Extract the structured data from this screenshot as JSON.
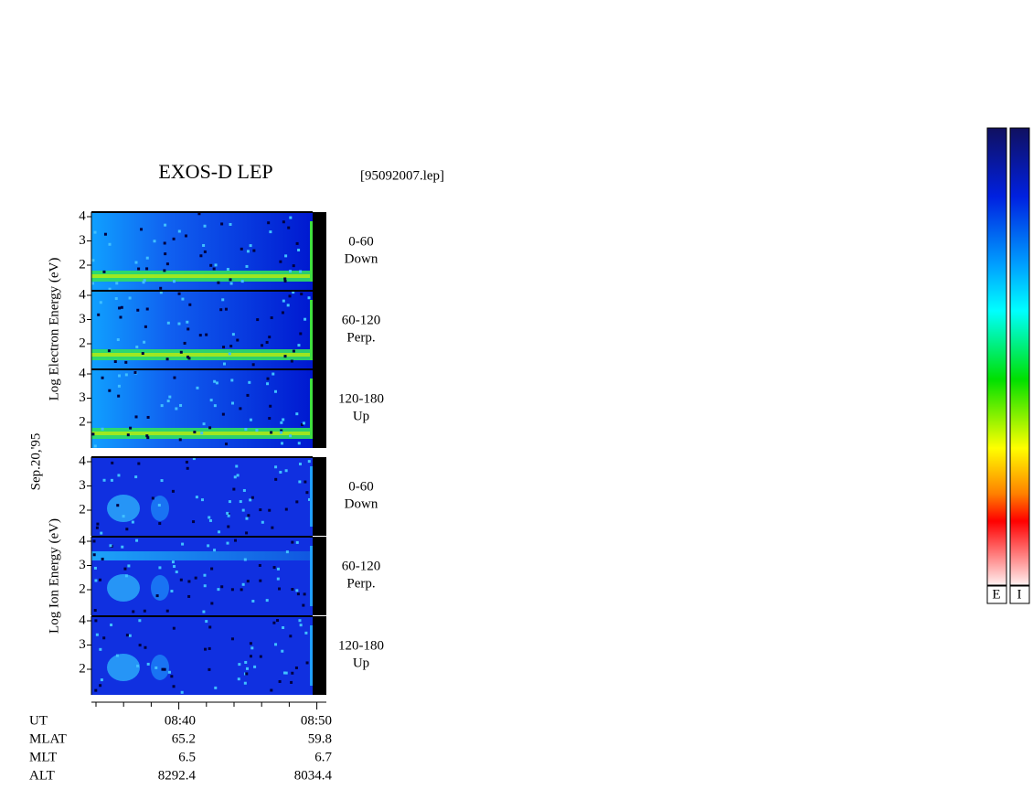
{
  "header": {
    "title": "EXOS-D LEP",
    "file": "[95092007.lep]"
  },
  "date": "Sep.20,'95",
  "electron": {
    "axis_label": "Log Electron Energy (eV)",
    "panels": [
      {
        "range": "0-60",
        "direction": "Down",
        "yticks": [
          2,
          3,
          4
        ]
      },
      {
        "range": "60-120",
        "direction": "Perp.",
        "yticks": [
          2,
          3,
          4
        ]
      },
      {
        "range": "120-180",
        "direction": "Up",
        "yticks": [
          2,
          3,
          4
        ]
      }
    ]
  },
  "ion": {
    "axis_label": "Log Ion Energy (eV)",
    "panels": [
      {
        "range": "0-60",
        "direction": "Down",
        "yticks": [
          2,
          3,
          4
        ]
      },
      {
        "range": "60-120",
        "direction": "Perp.",
        "yticks": [
          2,
          3,
          4
        ]
      },
      {
        "range": "120-180",
        "direction": "Up",
        "yticks": [
          2,
          3,
          4
        ]
      }
    ]
  },
  "footer": {
    "rows": [
      [
        "UT",
        "08:40",
        "08:50"
      ],
      [
        "MLAT",
        "65.2",
        "59.8"
      ],
      [
        "MLT",
        "6.5",
        "6.7"
      ],
      [
        "ALT",
        "8292.4",
        "8034.4"
      ]
    ]
  },
  "colorbar": {
    "labels": [
      "E",
      "I"
    ]
  }
}
